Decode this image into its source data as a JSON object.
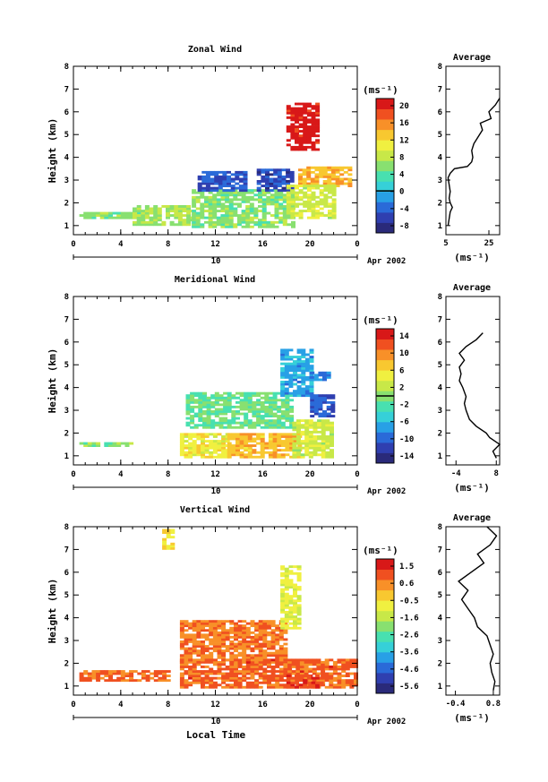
{
  "chart_data": [
    {
      "type": "heatmap",
      "title": "Zonal Wind",
      "xlabel": "",
      "ylabel": "Height (km)",
      "x_ticks": [
        "0",
        "4",
        "8",
        "12",
        "16",
        "20",
        "0"
      ],
      "y_ticks": [
        "1",
        "2",
        "3",
        "4",
        "5",
        "6",
        "7",
        "8"
      ],
      "date_day": "10",
      "date_month": "Apr 2002",
      "xlim": [
        0,
        24
      ],
      "ylim": [
        0.6,
        8.0
      ],
      "colorbar": {
        "unit": "(ms⁻¹)",
        "ticks": [
          "20",
          "16",
          "12",
          "8",
          "4",
          "0",
          "-4",
          "-8"
        ],
        "range": [
          -10,
          22
        ],
        "zero_line": 0
      },
      "regions": [
        {
          "x": [
            0.5,
            6
          ],
          "y": [
            1.3,
            1.6
          ],
          "value": 6
        },
        {
          "x": [
            5,
            10
          ],
          "y": [
            1.0,
            1.9
          ],
          "value": 7
        },
        {
          "x": [
            10,
            18.5
          ],
          "y": [
            0.9,
            2.6
          ],
          "value": 6
        },
        {
          "x": [
            10.5,
            14.5
          ],
          "y": [
            2.5,
            3.4
          ],
          "value": -5
        },
        {
          "x": [
            15.5,
            18.5
          ],
          "y": [
            2.5,
            3.5
          ],
          "value": -6
        },
        {
          "x": [
            18,
            20.5
          ],
          "y": [
            4.3,
            6.3
          ],
          "value": 21
        },
        {
          "x": [
            19,
            23.5
          ],
          "y": [
            2.7,
            3.6
          ],
          "value": 14
        },
        {
          "x": [
            18,
            22
          ],
          "y": [
            1.3,
            2.8
          ],
          "value": 9
        }
      ],
      "profile": {
        "title": "Average",
        "xlabel": "(ms⁻¹)",
        "x_ticks": [
          "5",
          "25"
        ],
        "xlim": [
          5,
          30
        ],
        "height": [
          1.0,
          1.3,
          1.6,
          1.8,
          2.0,
          2.2,
          2.5,
          2.8,
          3.1,
          3.3,
          3.5,
          3.6,
          3.8,
          4.0,
          4.3,
          4.6,
          4.9,
          5.2,
          5.5,
          5.7,
          6.0,
          6.3,
          6.6
        ],
        "value": [
          6,
          6.5,
          7,
          8,
          7,
          6.5,
          7,
          6.5,
          6,
          7,
          9,
          15,
          17,
          17.5,
          17,
          18,
          20,
          22,
          21,
          26,
          25,
          28,
          30
        ]
      }
    },
    {
      "type": "heatmap",
      "title": "Meridional Wind",
      "xlabel": "",
      "ylabel": "Height (km)",
      "x_ticks": [
        "0",
        "4",
        "8",
        "12",
        "16",
        "20",
        "0"
      ],
      "y_ticks": [
        "1",
        "2",
        "3",
        "4",
        "5",
        "6",
        "7",
        "8"
      ],
      "date_day": "10",
      "date_month": "Apr 2002",
      "xlim": [
        0,
        24
      ],
      "ylim": [
        0.6,
        8.0
      ],
      "colorbar": {
        "unit": "(ms⁻¹)",
        "ticks": [
          "14",
          "10",
          "6",
          "2",
          "-2",
          "-6",
          "-10",
          "-14"
        ],
        "range": [
          -16,
          16
        ],
        "zero_line": 0
      },
      "regions": [
        {
          "x": [
            0.5,
            5
          ],
          "y": [
            1.4,
            1.6
          ],
          "value": 0
        },
        {
          "x": [
            9,
            13
          ],
          "y": [
            0.9,
            2.0
          ],
          "value": 5
        },
        {
          "x": [
            13,
            19
          ],
          "y": [
            0.9,
            2.0
          ],
          "value": 8
        },
        {
          "x": [
            9.5,
            18.5
          ],
          "y": [
            2.2,
            3.8
          ],
          "value": -1
        },
        {
          "x": [
            17.5,
            20
          ],
          "y": [
            3.6,
            5.6
          ],
          "value": -7
        },
        {
          "x": [
            20,
            22
          ],
          "y": [
            2.7,
            3.7
          ],
          "value": -11
        },
        {
          "x": [
            20,
            21.5
          ],
          "y": [
            4.3,
            4.6
          ],
          "value": -9
        },
        {
          "x": [
            18.5,
            22
          ],
          "y": [
            0.9,
            2.6
          ],
          "value": 3
        }
      ],
      "profile": {
        "title": "Average",
        "xlabel": "(ms⁻¹)",
        "x_ticks": [
          "-4",
          "8"
        ],
        "xlim": [
          -7,
          9
        ],
        "height": [
          0.9,
          1.2,
          1.5,
          1.8,
          2.0,
          2.3,
          2.6,
          3.0,
          3.3,
          3.6,
          4.0,
          4.3,
          4.6,
          4.9,
          5.2,
          5.5,
          5.8,
          6.1,
          6.4
        ],
        "value": [
          8,
          7,
          9,
          6,
          5,
          2,
          0,
          -1,
          -1.5,
          -1,
          -2,
          -3,
          -2.5,
          -3,
          -1.5,
          -3,
          -1,
          2,
          4
        ]
      }
    },
    {
      "type": "heatmap",
      "title": "Vertical Wind",
      "xlabel": "Local Time",
      "ylabel": "Height (km)",
      "x_ticks": [
        "0",
        "4",
        "8",
        "12",
        "16",
        "20",
        "0"
      ],
      "y_ticks": [
        "1",
        "2",
        "3",
        "4",
        "5",
        "6",
        "7",
        "8"
      ],
      "date_day": "10",
      "date_month": "Apr 2002",
      "xlim": [
        0,
        24
      ],
      "ylim": [
        0.6,
        8.0
      ],
      "colorbar": {
        "unit": "(ms⁻¹)",
        "ticks": [
          "1.5",
          "0.6",
          "-0.5",
          "-1.6",
          "-2.6",
          "-3.6",
          "-4.6",
          "-5.6"
        ],
        "range": [
          -6.2,
          2.0
        ],
        "zero_line": null
      },
      "regions": [
        {
          "x": [
            0.5,
            8
          ],
          "y": [
            1.2,
            1.7
          ],
          "value": 0.8
        },
        {
          "x": [
            9,
            18
          ],
          "y": [
            2.0,
            3.9
          ],
          "value": 0.6
        },
        {
          "x": [
            9,
            24
          ],
          "y": [
            0.9,
            2.2
          ],
          "value": 0.9
        },
        {
          "x": [
            17.5,
            19
          ],
          "y": [
            3.5,
            6.2
          ],
          "value": -1.0
        },
        {
          "x": [
            7.5,
            8.5
          ],
          "y": [
            7.0,
            7.8
          ],
          "value": -0.4
        },
        {
          "x": [
            18,
            21
          ],
          "y": [
            0.9,
            1.5
          ],
          "value": 1.2
        }
      ],
      "profile": {
        "title": "Average",
        "xlabel": "(ms⁻¹)",
        "x_ticks": [
          "-0.4",
          "0.8"
        ],
        "xlim": [
          -0.7,
          1.0
        ],
        "height": [
          0.8,
          1.2,
          1.6,
          2.0,
          2.4,
          2.8,
          3.2,
          3.6,
          4.0,
          4.4,
          4.8,
          5.2,
          5.6,
          6.0,
          6.4,
          6.8,
          7.2,
          7.6,
          8.0
        ],
        "value": [
          0.8,
          0.85,
          0.75,
          0.7,
          0.8,
          0.7,
          0.6,
          0.3,
          0.2,
          0.0,
          -0.2,
          0.0,
          -0.3,
          0.1,
          0.5,
          0.3,
          0.7,
          0.9,
          0.6
        ]
      }
    }
  ],
  "colors": {
    "scale": [
      "#2a2a7a",
      "#2f3fb0",
      "#2a6ad8",
      "#28a0e6",
      "#36d0d8",
      "#48e0b0",
      "#88e070",
      "#c8e848",
      "#f0f040",
      "#f8c830",
      "#f89028",
      "#f05020",
      "#d81818"
    ]
  }
}
